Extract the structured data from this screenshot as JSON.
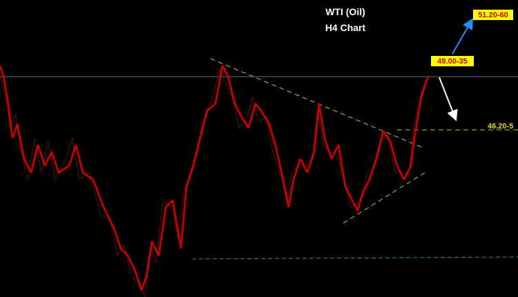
{
  "header": {
    "title": "WTI (Oil)",
    "subtitle": "H4 Chart"
  },
  "annotations": {
    "target_high": "51.20-60",
    "current": "49.00-35",
    "support": "46.20-5"
  }
}
